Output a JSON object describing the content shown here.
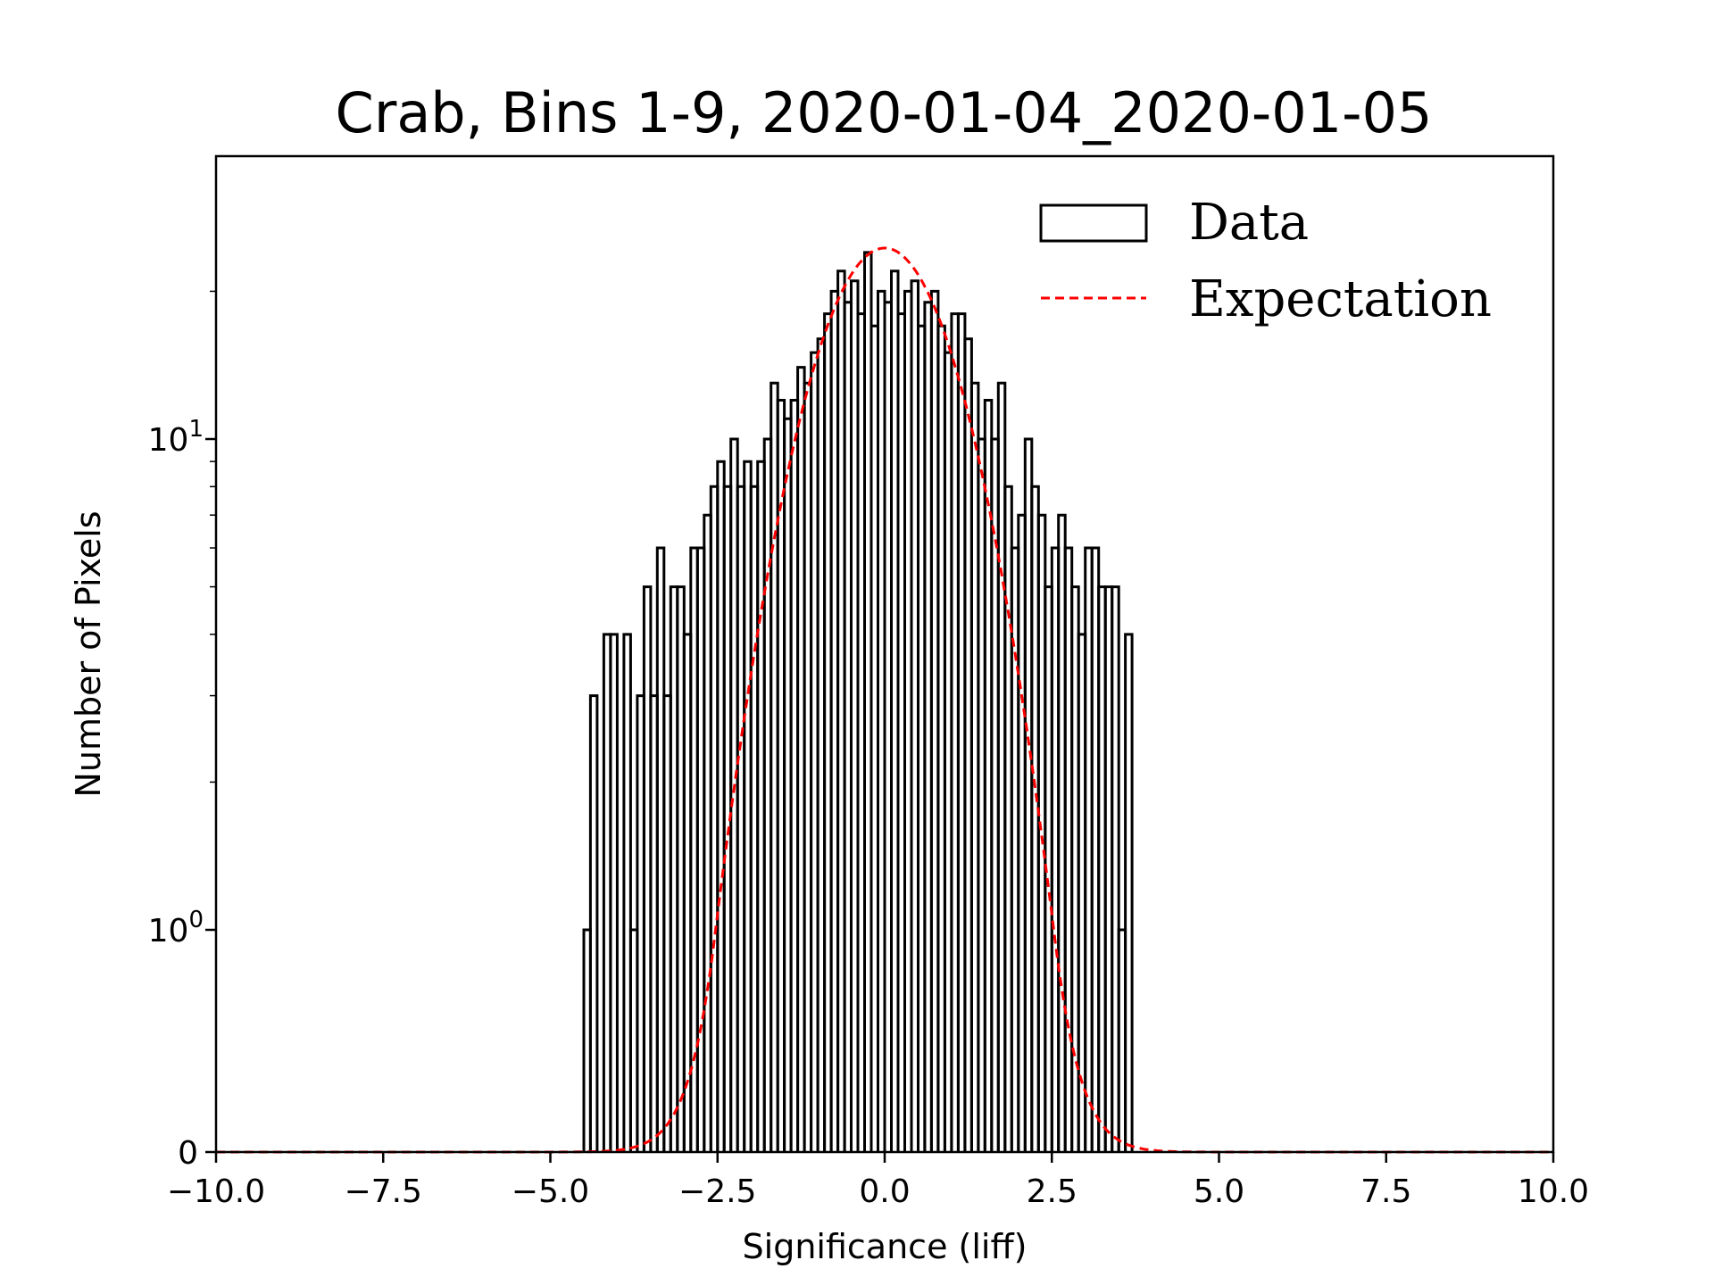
{
  "chart_data": {
    "type": "histogram",
    "title": "Crab, Bins 1-9, 2020-01-04_2020-01-05",
    "xlabel": "Significance (liff)",
    "ylabel": "Number of Pixels",
    "xlim": [
      -10,
      10
    ],
    "yscale": "symlog",
    "x_ticks": [
      {
        "value": -10,
        "label": "−10.0"
      },
      {
        "value": -7.5,
        "label": "−7.5"
      },
      {
        "value": -5,
        "label": "−5.0"
      },
      {
        "value": -2.5,
        "label": "−2.5"
      },
      {
        "value": 0,
        "label": "0.0"
      },
      {
        "value": 2.5,
        "label": "2.5"
      },
      {
        "value": 5,
        "label": "5.0"
      },
      {
        "value": 7.5,
        "label": "7.5"
      },
      {
        "value": 10,
        "label": "10.0"
      }
    ],
    "y_ticks": [
      {
        "value": 0,
        "label": "0"
      },
      {
        "value": 1,
        "label": "10",
        "exponent": "0"
      },
      {
        "value": 10,
        "label": "10",
        "exponent": "1"
      }
    ],
    "legend": {
      "location": "upper-right",
      "entries": [
        {
          "label": "Data",
          "style": "step",
          "color": "#000000"
        },
        {
          "label": "Expectation",
          "style": "dashed",
          "color": "#ff0000"
        }
      ]
    },
    "histogram": {
      "name": "Data",
      "bin_width": 0.1,
      "bins": [
        [
          -4.45,
          1
        ],
        [
          -4.35,
          3
        ],
        [
          -4.25,
          0
        ],
        [
          -4.15,
          4
        ],
        [
          -4.05,
          4
        ],
        [
          -3.95,
          0
        ],
        [
          -3.85,
          4
        ],
        [
          -3.75,
          1
        ],
        [
          -3.65,
          3
        ],
        [
          -3.55,
          5
        ],
        [
          -3.45,
          3
        ],
        [
          -3.35,
          6
        ],
        [
          -3.25,
          3
        ],
        [
          -3.15,
          5
        ],
        [
          -3.05,
          5
        ],
        [
          -2.95,
          4
        ],
        [
          -2.85,
          6
        ],
        [
          -2.75,
          6
        ],
        [
          -2.65,
          7
        ],
        [
          -2.55,
          8
        ],
        [
          -2.45,
          9
        ],
        [
          -2.35,
          8
        ],
        [
          -2.25,
          10
        ],
        [
          -2.15,
          8
        ],
        [
          -2.05,
          9
        ],
        [
          -1.95,
          8
        ],
        [
          -1.85,
          9
        ],
        [
          -1.75,
          10
        ],
        [
          -1.65,
          13
        ],
        [
          -1.55,
          12
        ],
        [
          -1.45,
          11
        ],
        [
          -1.35,
          12
        ],
        [
          -1.25,
          14
        ],
        [
          -1.15,
          13
        ],
        [
          -1.05,
          15
        ],
        [
          -0.95,
          16
        ],
        [
          -0.85,
          18
        ],
        [
          -0.75,
          20
        ],
        [
          -0.65,
          22
        ],
        [
          -0.55,
          19
        ],
        [
          -0.45,
          21
        ],
        [
          -0.35,
          18
        ],
        [
          -0.25,
          24
        ],
        [
          -0.15,
          17
        ],
        [
          -0.05,
          20
        ],
        [
          0.05,
          19
        ],
        [
          0.15,
          22
        ],
        [
          0.25,
          18
        ],
        [
          0.35,
          20
        ],
        [
          0.45,
          21
        ],
        [
          0.55,
          17
        ],
        [
          0.65,
          19
        ],
        [
          0.75,
          20
        ],
        [
          0.85,
          17
        ],
        [
          0.95,
          15
        ],
        [
          1.05,
          18
        ],
        [
          1.15,
          18
        ],
        [
          1.25,
          16
        ],
        [
          1.35,
          13
        ],
        [
          1.45,
          10
        ],
        [
          1.55,
          12
        ],
        [
          1.65,
          10
        ],
        [
          1.75,
          13
        ],
        [
          1.85,
          8
        ],
        [
          1.95,
          6
        ],
        [
          2.05,
          7
        ],
        [
          2.15,
          10
        ],
        [
          2.25,
          8
        ],
        [
          2.35,
          7
        ],
        [
          2.45,
          5
        ],
        [
          2.55,
          6
        ],
        [
          2.65,
          7
        ],
        [
          2.75,
          6
        ],
        [
          2.85,
          5
        ],
        [
          2.95,
          4
        ],
        [
          3.05,
          6
        ],
        [
          3.15,
          6
        ],
        [
          3.25,
          5
        ],
        [
          3.35,
          5
        ],
        [
          3.45,
          5
        ],
        [
          3.55,
          1
        ],
        [
          3.65,
          4
        ]
      ]
    },
    "expectation": {
      "name": "Expectation",
      "model": "gaussian",
      "mean": 0,
      "sigma": 1,
      "peak": 24.5
    }
  }
}
